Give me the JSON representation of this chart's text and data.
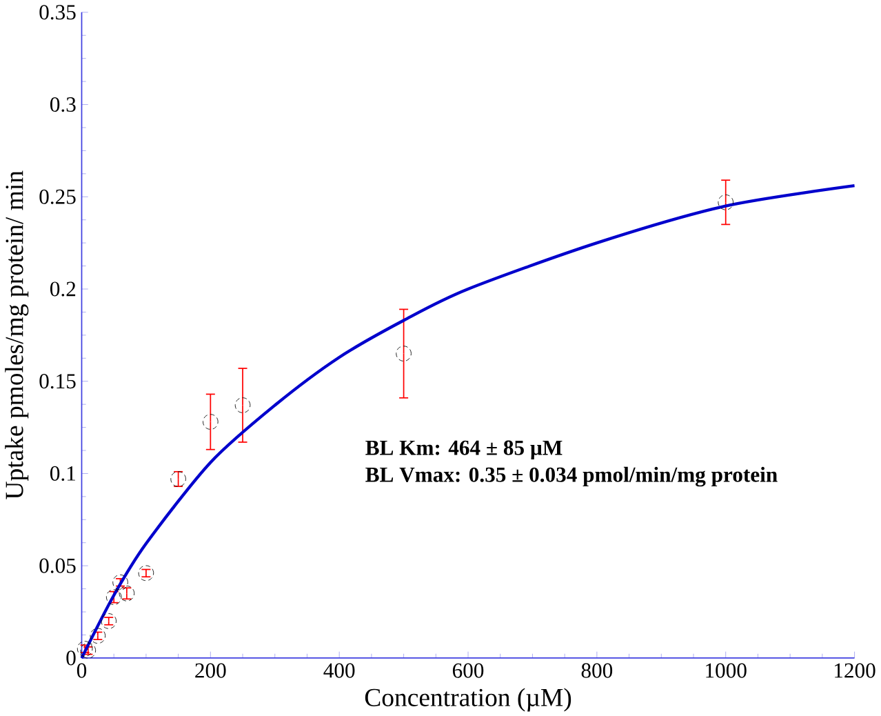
{
  "chart_data": {
    "type": "scatter",
    "xlabel": "Concentration (µM)",
    "ylabel": "Uptake pmoles/mg protein/ min",
    "xlim": [
      0,
      1200
    ],
    "ylim": [
      0,
      0.35
    ],
    "xticks": [
      0,
      200,
      400,
      600,
      800,
      1000,
      1200
    ],
    "yticks": [
      0,
      0.05,
      0.1,
      0.15,
      0.2,
      0.25,
      0.3,
      0.35
    ],
    "marker": "circle",
    "series": [
      {
        "color": "#000000",
        "x": [
          5,
          10,
          25,
          42,
          50,
          60,
          70,
          100,
          150,
          200,
          250,
          500,
          1000
        ],
        "values": [
          0.005,
          0.004,
          0.012,
          0.02,
          0.033,
          0.041,
          0.035,
          0.046,
          0.097,
          0.128,
          0.137,
          0.165,
          0.247
        ],
        "errors": [
          0.002,
          0.002,
          0.002,
          0.002,
          0.003,
          0.002,
          0.003,
          0.002,
          0.004,
          0.015,
          0.02,
          0.024,
          0.012
        ]
      },
      {
        "type": "line",
        "marker": "none",
        "color": "#0000cc",
        "x": [
          0,
          50,
          100,
          200,
          300,
          400,
          500,
          600,
          800,
          1000,
          1200
        ],
        "values": [
          0,
          0.034,
          0.062,
          0.106,
          0.137,
          0.163,
          0.183,
          0.2,
          0.225,
          0.245,
          0.256
        ]
      }
    ],
    "annotations": [
      "BL Km: 464 ± 85 µM",
      "BL Vmax: 0.35 ± 0.034 pmol/min/mg protein"
    ]
  }
}
